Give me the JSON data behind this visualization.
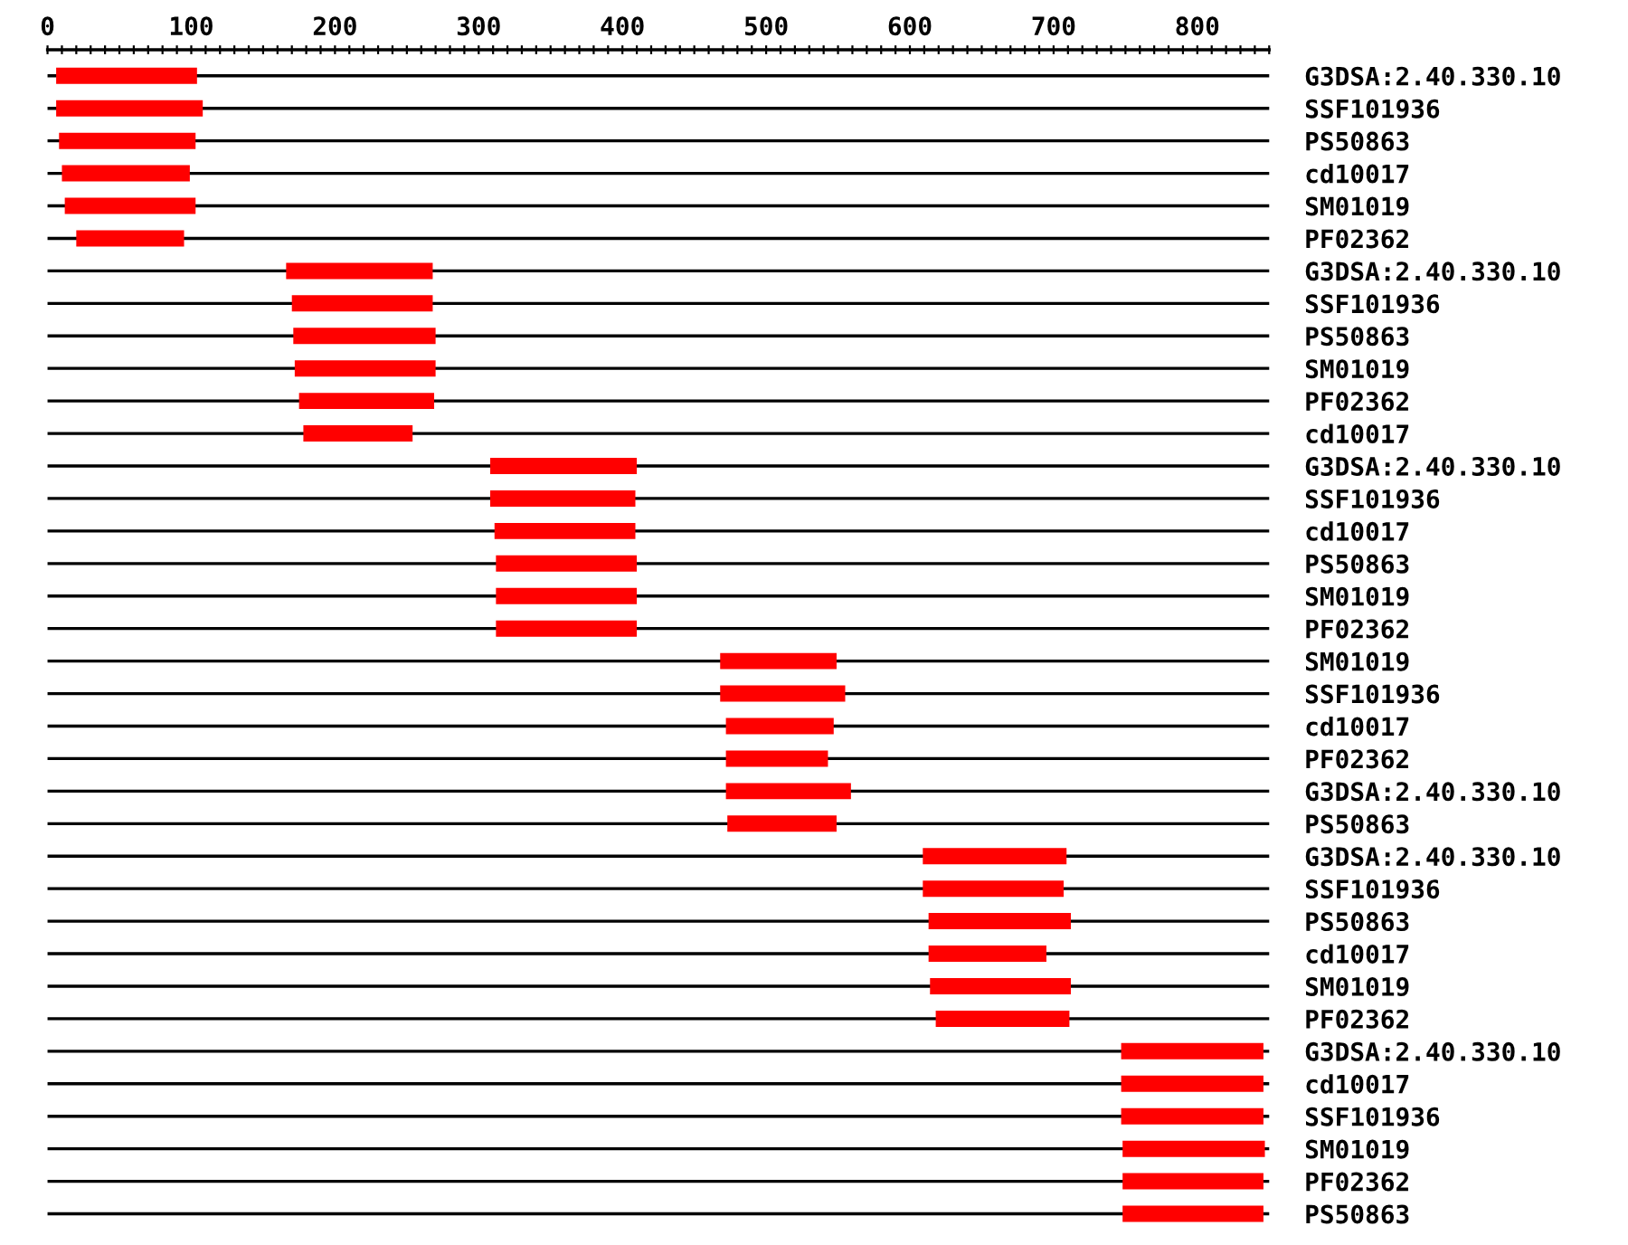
{
  "chart_data": {
    "type": "bar",
    "orientation": "horizontal",
    "grid": "y",
    "color": "#ff0000",
    "categories": [
      "G3DSA:2.40.330.10",
      "SSF101936",
      "PS50863",
      "cd10017",
      "SM01019",
      "PF02362",
      "G3DSA:2.40.330.10",
      "SSF101936",
      "PS50863",
      "SM01019",
      "PF02362",
      "cd10017",
      "G3DSA:2.40.330.10",
      "SSF101936",
      "cd10017",
      "PS50863",
      "SM01019",
      "PF02362",
      "SM01019",
      "SSF101936",
      "cd10017",
      "PF02362",
      "G3DSA:2.40.330.10",
      "PS50863",
      "G3DSA:2.40.330.10",
      "SSF101936",
      "PS50863",
      "cd10017",
      "SM01019",
      "PF02362",
      "G3DSA:2.40.330.10",
      "cd10017",
      "SSF101936",
      "SM01019",
      "PF02362",
      "PS50863"
    ],
    "base": [
      6,
      6,
      8,
      10,
      12,
      20,
      166,
      170,
      171,
      172,
      175,
      178,
      308,
      308,
      311,
      312,
      312,
      312,
      468,
      468,
      472,
      472,
      472,
      473,
      609,
      609,
      613,
      613,
      614,
      618,
      747,
      747,
      747,
      748,
      748,
      748
    ],
    "values": [
      98,
      102,
      95,
      89,
      91,
      75,
      102,
      98,
      99,
      98,
      94,
      76,
      102,
      101,
      98,
      98,
      98,
      98,
      81,
      87,
      75,
      71,
      87,
      76,
      100,
      98,
      99,
      82,
      98,
      93,
      99,
      99,
      99,
      99,
      98,
      98
    ],
    "xlim": [
      0,
      850
    ],
    "xticks": [
      0,
      {
        "value": 10,
        "label": null
      },
      {
        "value": 20,
        "label": null
      },
      {
        "value": 30,
        "label": null
      },
      {
        "value": 40,
        "label": null
      },
      {
        "value": 50,
        "label": null
      },
      {
        "value": 60,
        "label": null
      },
      {
        "value": 70,
        "label": null
      },
      {
        "value": 80,
        "label": null
      },
      {
        "value": 90,
        "label": null
      },
      100,
      {
        "value": 110,
        "label": null
      },
      {
        "value": 120,
        "label": null
      },
      {
        "value": 130,
        "label": null
      },
      {
        "value": 140,
        "label": null
      },
      {
        "value": 150,
        "label": null
      },
      {
        "value": 160,
        "label": null
      },
      {
        "value": 170,
        "label": null
      },
      {
        "value": 180,
        "label": null
      },
      {
        "value": 190,
        "label": null
      },
      200,
      {
        "value": 210,
        "label": null
      },
      {
        "value": 220,
        "label": null
      },
      {
        "value": 230,
        "label": null
      },
      {
        "value": 240,
        "label": null
      },
      {
        "value": 250,
        "label": null
      },
      {
        "value": 260,
        "label": null
      },
      {
        "value": 270,
        "label": null
      },
      {
        "value": 280,
        "label": null
      },
      {
        "value": 290,
        "label": null
      },
      300,
      {
        "value": 310,
        "label": null
      },
      {
        "value": 320,
        "label": null
      },
      {
        "value": 330,
        "label": null
      },
      {
        "value": 340,
        "label": null
      },
      {
        "value": 350,
        "label": null
      },
      {
        "value": 360,
        "label": null
      },
      {
        "value": 370,
        "label": null
      },
      {
        "value": 380,
        "label": null
      },
      {
        "value": 390,
        "label": null
      },
      400,
      {
        "value": 410,
        "label": null
      },
      {
        "value": 420,
        "label": null
      },
      {
        "value": 430,
        "label": null
      },
      {
        "value": 440,
        "label": null
      },
      {
        "value": 450,
        "label": null
      },
      {
        "value": 460,
        "label": null
      },
      {
        "value": 470,
        "label": null
      },
      {
        "value": 480,
        "label": null
      },
      {
        "value": 490,
        "label": null
      },
      500,
      {
        "value": 510,
        "label": null
      },
      {
        "value": 520,
        "label": null
      },
      {
        "value": 530,
        "label": null
      },
      {
        "value": 540,
        "label": null
      },
      {
        "value": 550,
        "label": null
      },
      {
        "value": 560,
        "label": null
      },
      {
        "value": 570,
        "label": null
      },
      {
        "value": 580,
        "label": null
      },
      {
        "value": 590,
        "label": null
      },
      600,
      {
        "value": 610,
        "label": null
      },
      {
        "value": 620,
        "label": null
      },
      {
        "value": 630,
        "label": null
      },
      {
        "value": 640,
        "label": null
      },
      {
        "value": 650,
        "label": null
      },
      {
        "value": 660,
        "label": null
      },
      {
        "value": 670,
        "label": null
      },
      {
        "value": 680,
        "label": null
      },
      {
        "value": 690,
        "label": null
      },
      700,
      {
        "value": 710,
        "label": null
      },
      {
        "value": 720,
        "label": null
      },
      {
        "value": 730,
        "label": null
      },
      {
        "value": 740,
        "label": null
      },
      {
        "value": 750,
        "label": null
      },
      {
        "value": 760,
        "label": null
      },
      {
        "value": 770,
        "label": null
      },
      {
        "value": 780,
        "label": null
      },
      {
        "value": 790,
        "label": null
      },
      800,
      {
        "value": 810,
        "label": null
      },
      {
        "value": 820,
        "label": null
      },
      {
        "value": 830,
        "label": null
      },
      {
        "value": 840,
        "label": null
      },
      {
        "value": 850,
        "label": null
      }
    ]
  }
}
